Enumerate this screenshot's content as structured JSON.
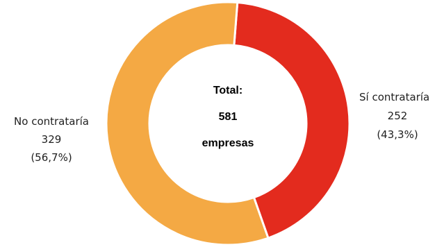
{
  "chart_data": {
    "type": "pie",
    "variant": "donut",
    "title": "",
    "center_text": [
      "Total:",
      "581",
      "empresas"
    ],
    "slices": [
      {
        "name": "Sí contrataría",
        "value": 252,
        "value_label": "252",
        "percent_label": "(43,3%)",
        "color": "#e32b1e"
      },
      {
        "name": "No contrataría",
        "value": 329,
        "value_label": "329",
        "percent_label": "(56,7%)",
        "color": "#f4a944"
      }
    ],
    "legend": "none"
  }
}
